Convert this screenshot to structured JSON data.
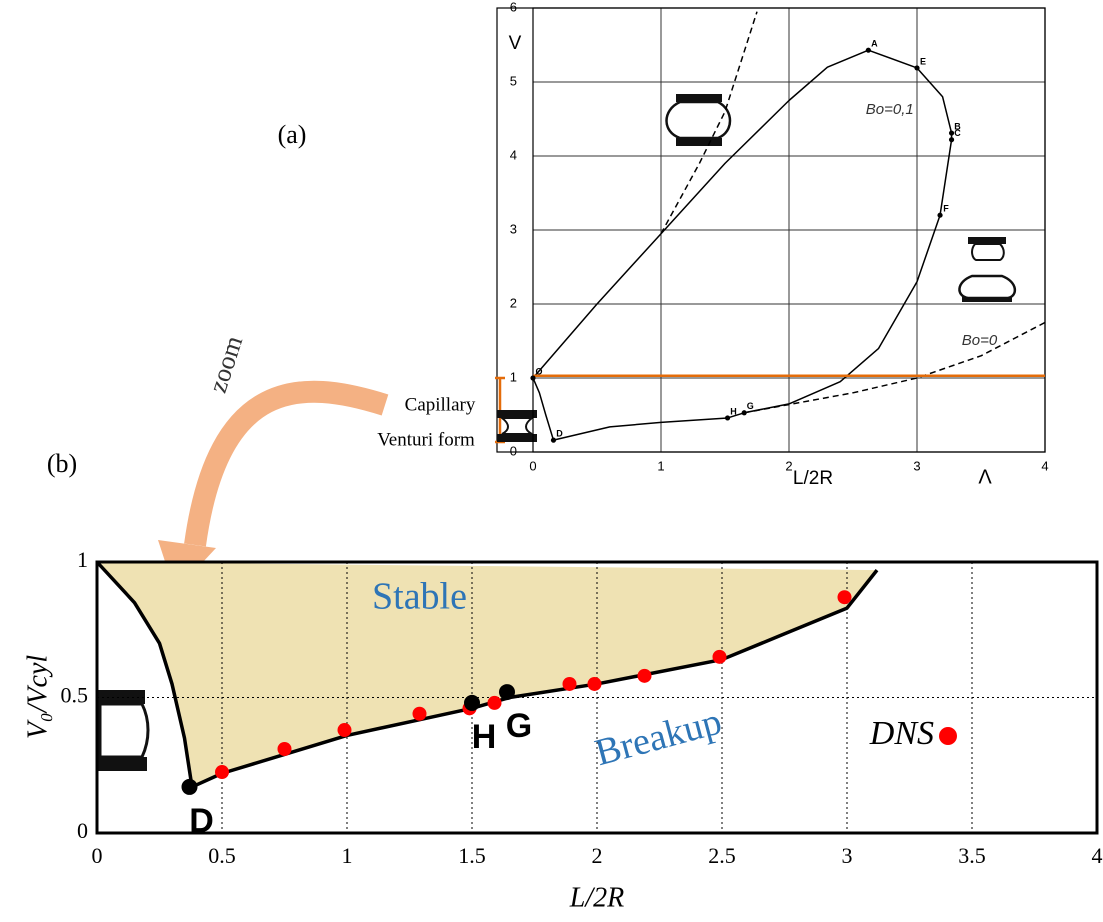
{
  "chart_data": [
    {
      "type": "line",
      "title": "(a)",
      "xlabel": "L/2R",
      "ylabel": "V",
      "xlim": [
        0,
        4
      ],
      "ylim": [
        0,
        6
      ],
      "xticks": [
        0,
        1,
        2,
        3,
        4
      ],
      "yticks": [
        0,
        1,
        2,
        3,
        4,
        5,
        6
      ],
      "grid": "solid",
      "series": [
        {
          "color": "#000000",
          "dash": false,
          "x": [
            0,
            0.5,
            1,
            1.5,
            2,
            2.3,
            2.62,
            3.0,
            3.2,
            3.27,
            3.27,
            3.18,
            3.0,
            2.7,
            2.4,
            2.0,
            1.65,
            1.52,
            1.0,
            0.6,
            0.16,
            0.1,
            0.05,
            0
          ],
          "values": [
            1,
            2.0,
            2.95,
            3.9,
            4.75,
            5.2,
            5.43,
            5.19,
            4.8,
            4.31,
            4.22,
            3.2,
            2.3,
            1.4,
            0.95,
            0.65,
            0.53,
            0.46,
            0.4,
            0.34,
            0.16,
            0.5,
            0.8,
            1
          ]
        },
        {
          "color": "#000000",
          "dash": true,
          "x": [
            1.0,
            1.3,
            1.5,
            1.75
          ],
          "values": [
            2.95,
            3.9,
            4.6,
            5.95
          ]
        },
        {
          "color": "#000000",
          "dash": true,
          "x": [
            1.65,
            2.5,
            3.0,
            3.5,
            4.0
          ],
          "values": [
            0.53,
            0.8,
            1.0,
            1.3,
            1.75
          ]
        },
        {
          "color": "#e46c0a",
          "dash": false,
          "width": 2.5,
          "x": [
            0,
            4
          ],
          "values": [
            1.03,
            1.03
          ]
        }
      ],
      "points": [
        {
          "label": "O",
          "x": 0,
          "y": 1
        },
        {
          "label": "A",
          "x": 2.62,
          "y": 5.43
        },
        {
          "label": "E",
          "x": 3.0,
          "y": 5.19
        },
        {
          "label": "B",
          "x": 3.27,
          "y": 4.31
        },
        {
          "label": "C",
          "x": 3.27,
          "y": 4.22
        },
        {
          "label": "F",
          "x": 3.18,
          "y": 3.2
        },
        {
          "label": "G",
          "x": 1.65,
          "y": 0.53
        },
        {
          "label": "H",
          "x": 1.52,
          "y": 0.46
        },
        {
          "label": "D",
          "x": 0.16,
          "y": 0.16
        }
      ],
      "annotations": [
        {
          "text": "Bo=0,1",
          "x": 2.6,
          "y": 4.62,
          "color": "#333333"
        },
        {
          "text": "Bo=0",
          "x": 3.35,
          "y": 1.5,
          "color": "#333333"
        }
      ],
      "notes": [
        "Capillary",
        "Venturi form",
        "zoom",
        "Λ"
      ]
    },
    {
      "type": "line",
      "title": "(b)",
      "xlabel": "L/2R",
      "ylabel": "V₀/Vcyl",
      "xlim": [
        0,
        4
      ],
      "ylim": [
        0,
        1
      ],
      "xticks": [
        0,
        0.5,
        1,
        1.5,
        2,
        2.5,
        3,
        3.5,
        4
      ],
      "yticks": [
        0,
        0.5,
        1
      ],
      "grid": "dotted",
      "series": [
        {
          "color": "#000000",
          "dash": false,
          "fill": "#efe2b3",
          "width": 3.5,
          "x": [
            0,
            0.15,
            0.25,
            0.3,
            0.35,
            0.38,
            0.5,
            0.75,
            1,
            1.3,
            1.5,
            1.65,
            2,
            2.5,
            3,
            3.12
          ],
          "values": [
            1,
            0.85,
            0.7,
            0.55,
            0.35,
            0.17,
            0.22,
            0.29,
            0.36,
            0.42,
            0.46,
            0.5,
            0.55,
            0.64,
            0.83,
            0.97
          ]
        },
        {
          "name": "DNS",
          "color": "#ff0000",
          "mode": "markers",
          "x": [
            0.5,
            0.75,
            0.99,
            1.29,
            1.49,
            1.59,
            1.89,
            1.99,
            2.19,
            2.49,
            2.99
          ],
          "values": [
            0.225,
            0.31,
            0.38,
            0.44,
            0.46,
            0.48,
            0.55,
            0.55,
            0.58,
            0.65,
            0.87
          ]
        }
      ],
      "points": [
        {
          "label": "D",
          "x": 0.37,
          "y": 0.17
        },
        {
          "label": "H",
          "x": 1.5,
          "y": 0.48
        },
        {
          "label": "G",
          "x": 1.64,
          "y": 0.52
        }
      ],
      "annotations": [
        {
          "text": "Stable",
          "x": 1.1,
          "y": 0.86,
          "color": "#2e75b6"
        },
        {
          "text": "Breakup",
          "x": 2.0,
          "y": 0.28,
          "color": "#2e75b6",
          "rotate": -15
        }
      ],
      "legend": "inside"
    }
  ]
}
